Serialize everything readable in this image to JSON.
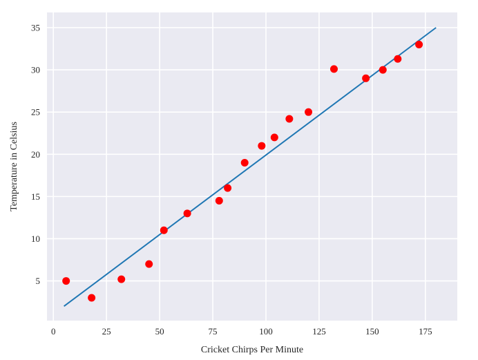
{
  "chart_data": {
    "type": "scatter",
    "title": "",
    "xlabel": "Cricket Chirps Per Minute",
    "ylabel": "Temperature in Celsius",
    "xlim": [
      -3,
      190
    ],
    "ylim": [
      0.3,
      36.8
    ],
    "xticks": [
      0,
      25,
      50,
      75,
      100,
      125,
      150,
      175
    ],
    "yticks": [
      5,
      10,
      15,
      20,
      25,
      30,
      35
    ],
    "grid": true,
    "background": "#eaeaf2",
    "grid_color": "#ffffff",
    "scatter_series": {
      "color": "#ff0000",
      "points": [
        [
          6,
          5.0
        ],
        [
          18,
          3.0
        ],
        [
          32,
          5.2
        ],
        [
          45,
          7.0
        ],
        [
          52,
          11.0
        ],
        [
          63,
          13.0
        ],
        [
          78,
          14.5
        ],
        [
          82,
          16.0
        ],
        [
          90,
          19.0
        ],
        [
          98,
          21.0
        ],
        [
          104,
          22.0
        ],
        [
          111,
          24.2
        ],
        [
          120,
          25.0
        ],
        [
          132,
          30.1
        ],
        [
          147,
          29.0
        ],
        [
          155,
          30.0
        ],
        [
          162,
          31.3
        ],
        [
          172,
          33.0
        ]
      ]
    },
    "fit_line": {
      "color": "#1f77b4",
      "x": [
        5,
        180
      ],
      "y": [
        2.0,
        35.0
      ]
    }
  }
}
